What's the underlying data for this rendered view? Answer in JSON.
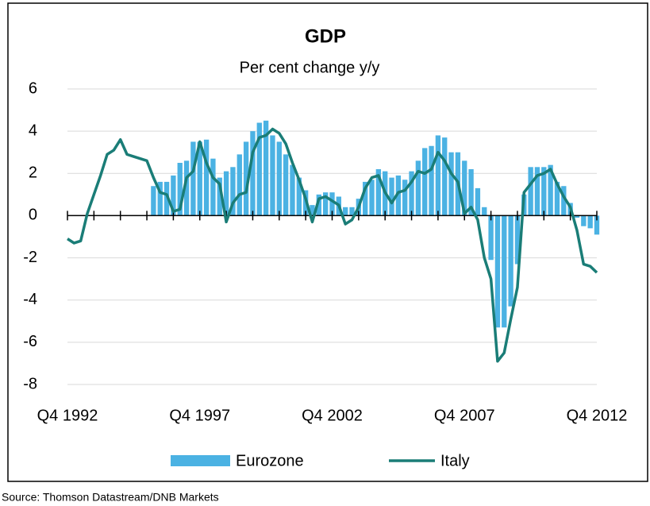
{
  "chart_data": {
    "type": "bar-line",
    "title": "GDP",
    "subtitle": "Per cent change y/y",
    "source": "Source: Thomson Datastream/DNB Markets",
    "categories": [
      "Q4 1992",
      null,
      null,
      null,
      null,
      null,
      null,
      null,
      null,
      null,
      null,
      null,
      null,
      null,
      null,
      null,
      null,
      null,
      null,
      null,
      "Q4 1997",
      null,
      null,
      null,
      null,
      null,
      null,
      null,
      null,
      null,
      null,
      null,
      null,
      null,
      null,
      null,
      null,
      null,
      null,
      null,
      "Q4 2002",
      null,
      null,
      null,
      null,
      null,
      null,
      null,
      null,
      null,
      null,
      null,
      null,
      null,
      null,
      null,
      null,
      null,
      null,
      null,
      "Q4 2007",
      null,
      null,
      null,
      null,
      null,
      null,
      null,
      null,
      null,
      null,
      null,
      null,
      null,
      null,
      null,
      null,
      null,
      null,
      null,
      "Q4 2012"
    ],
    "series": [
      {
        "name": "Eurozone",
        "type": "bar",
        "color": "#4bb2e3",
        "values": [
          null,
          null,
          null,
          null,
          null,
          null,
          null,
          null,
          null,
          null,
          null,
          null,
          null,
          1.4,
          1.6,
          1.6,
          1.9,
          2.5,
          2.6,
          3.5,
          3.5,
          3.6,
          2.7,
          1.8,
          2.1,
          2.3,
          2.9,
          3.5,
          4.0,
          4.4,
          4.5,
          3.8,
          3.5,
          2.9,
          2.4,
          1.8,
          1.2,
          0.5,
          1.0,
          1.1,
          1.1,
          0.9,
          0.4,
          0.4,
          0.8,
          1.6,
          1.7,
          2.2,
          2.1,
          1.8,
          1.9,
          1.7,
          2.1,
          2.6,
          3.2,
          3.3,
          3.8,
          3.7,
          3.0,
          3.0,
          2.6,
          2.2,
          1.3,
          0.4,
          -2.1,
          -5.3,
          -5.3,
          -4.3,
          -2.3,
          1.0,
          2.3,
          2.3,
          2.3,
          2.4,
          1.6,
          1.4,
          0.6,
          -0.1,
          -0.5,
          -0.6,
          -0.9
        ]
      },
      {
        "name": "Italy",
        "type": "line",
        "color": "#1a7d77",
        "values": [
          -1.1,
          -1.3,
          -1.2,
          0.1,
          1.0,
          1.9,
          2.9,
          3.1,
          3.6,
          2.9,
          2.8,
          2.7,
          2.6,
          1.8,
          1.1,
          1.0,
          0.2,
          0.3,
          1.8,
          2.1,
          3.5,
          2.5,
          1.8,
          1.5,
          -0.3,
          0.6,
          1.0,
          1.1,
          3.0,
          3.7,
          3.8,
          4.1,
          3.9,
          3.4,
          2.5,
          1.7,
          0.8,
          -0.3,
          0.8,
          0.9,
          0.7,
          0.5,
          -0.4,
          -0.2,
          0.4,
          1.3,
          1.8,
          1.9,
          1.1,
          0.6,
          1.1,
          1.2,
          1.6,
          2.1,
          2.0,
          2.2,
          3.0,
          2.6,
          2.0,
          1.6,
          0.1,
          0.4,
          -0.2,
          -2.0,
          -3.0,
          -6.9,
          -6.5,
          -4.9,
          -3.4,
          1.1,
          1.5,
          1.9,
          2.0,
          2.2,
          1.5,
          0.9,
          0.4,
          -0.7,
          -2.3,
          -2.4,
          -2.7
        ]
      }
    ],
    "ylim": [
      -8,
      6
    ],
    "yticks": [
      -8,
      -6,
      -4,
      -2,
      0,
      2,
      4,
      6
    ],
    "grid": true,
    "legend": "bottom"
  }
}
